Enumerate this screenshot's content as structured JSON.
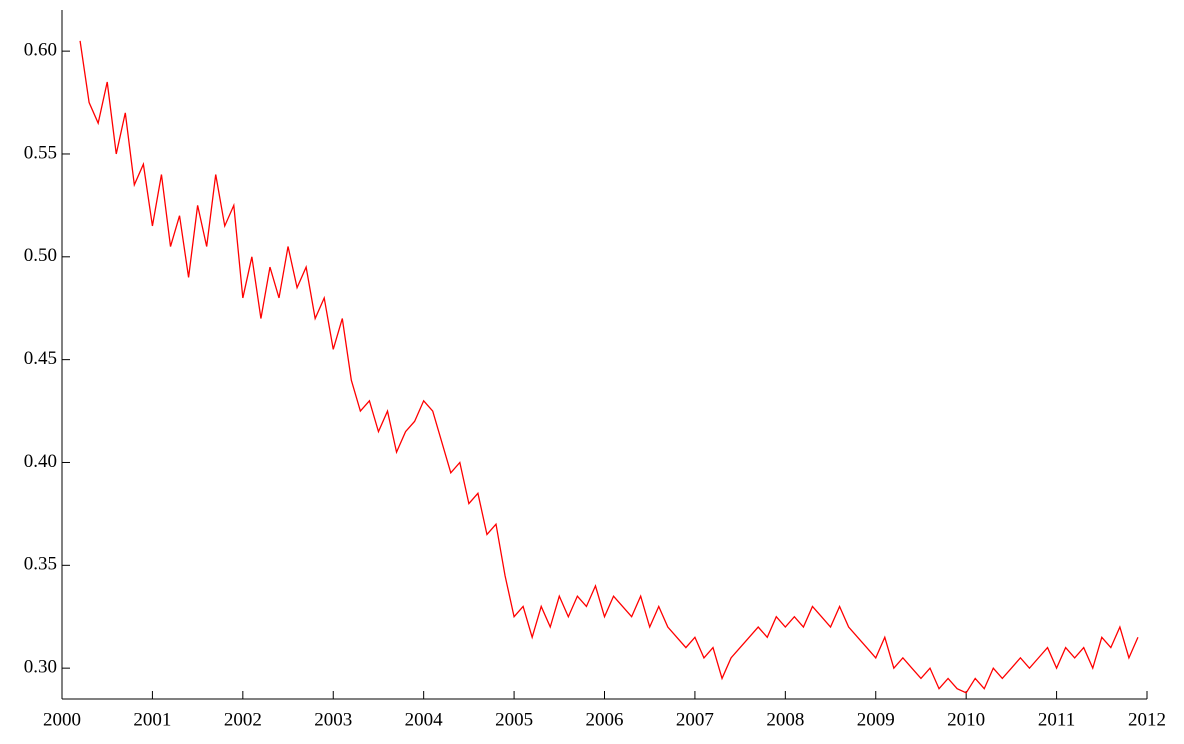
{
  "chart_data": {
    "type": "line",
    "x": [
      2000.2,
      2000.3,
      2000.4,
      2000.5,
      2000.6,
      2000.7,
      2000.8,
      2000.9,
      2001.0,
      2001.1,
      2001.2,
      2001.3,
      2001.4,
      2001.5,
      2001.6,
      2001.7,
      2001.8,
      2001.9,
      2002.0,
      2002.1,
      2002.2,
      2002.3,
      2002.4,
      2002.5,
      2002.6,
      2002.7,
      2002.8,
      2002.9,
      2003.0,
      2003.1,
      2003.2,
      2003.3,
      2003.4,
      2003.5,
      2003.6,
      2003.7,
      2003.8,
      2003.9,
      2004.0,
      2004.1,
      2004.2,
      2004.3,
      2004.4,
      2004.5,
      2004.6,
      2004.7,
      2004.8,
      2004.9,
      2005.0,
      2005.1,
      2005.2,
      2005.3,
      2005.4,
      2005.5,
      2005.6,
      2005.7,
      2005.8,
      2005.9,
      2006.0,
      2006.1,
      2006.2,
      2006.3,
      2006.4,
      2006.5,
      2006.6,
      2006.7,
      2006.8,
      2006.9,
      2007.0,
      2007.1,
      2007.2,
      2007.3,
      2007.4,
      2007.5,
      2007.6,
      2007.7,
      2007.8,
      2007.9,
      2008.0,
      2008.1,
      2008.2,
      2008.3,
      2008.4,
      2008.5,
      2008.6,
      2008.7,
      2008.8,
      2008.9,
      2009.0,
      2009.1,
      2009.2,
      2009.3,
      2009.4,
      2009.5,
      2009.6,
      2009.7,
      2009.8,
      2009.9,
      2010.0,
      2010.1,
      2010.2,
      2010.3,
      2010.4,
      2010.5,
      2010.6,
      2010.7,
      2010.8,
      2010.9,
      2011.0,
      2011.1,
      2011.2,
      2011.3,
      2011.4,
      2011.5,
      2011.6,
      2011.7,
      2011.8,
      2011.9
    ],
    "series": [
      {
        "color": "#ff0000",
        "values": [
          0.605,
          0.575,
          0.565,
          0.585,
          0.55,
          0.57,
          0.535,
          0.545,
          0.515,
          0.54,
          0.505,
          0.52,
          0.49,
          0.525,
          0.505,
          0.54,
          0.515,
          0.525,
          0.48,
          0.5,
          0.47,
          0.495,
          0.48,
          0.505,
          0.485,
          0.495,
          0.47,
          0.48,
          0.455,
          0.47,
          0.44,
          0.425,
          0.43,
          0.415,
          0.425,
          0.405,
          0.415,
          0.42,
          0.43,
          0.425,
          0.41,
          0.395,
          0.4,
          0.38,
          0.385,
          0.365,
          0.37,
          0.345,
          0.325,
          0.33,
          0.315,
          0.33,
          0.32,
          0.335,
          0.325,
          0.335,
          0.33,
          0.34,
          0.325,
          0.335,
          0.33,
          0.325,
          0.335,
          0.32,
          0.33,
          0.32,
          0.315,
          0.31,
          0.315,
          0.305,
          0.31,
          0.295,
          0.305,
          0.31,
          0.315,
          0.32,
          0.315,
          0.325,
          0.32,
          0.325,
          0.32,
          0.33,
          0.325,
          0.32,
          0.33,
          0.32,
          0.315,
          0.31,
          0.305,
          0.315,
          0.3,
          0.305,
          0.3,
          0.295,
          0.3,
          0.29,
          0.295,
          0.29,
          0.288,
          0.295,
          0.29,
          0.3,
          0.295,
          0.3,
          0.305,
          0.3,
          0.305,
          0.31,
          0.3,
          0.31,
          0.305,
          0.31,
          0.3,
          0.315,
          0.31,
          0.32,
          0.305,
          0.315
        ]
      }
    ],
    "xlim": [
      2000,
      2012
    ],
    "xticks": [
      2000,
      2001,
      2002,
      2003,
      2004,
      2005,
      2006,
      2007,
      2008,
      2009,
      2010,
      2011,
      2012
    ],
    "ylim": [
      0.285,
      0.62
    ],
    "yticks": [
      {
        "value": 0.3,
        "label": "0.30"
      },
      0.35,
      {
        "value": 0.4,
        "label": "0.40"
      },
      0.45,
      {
        "value": 0.5,
        "label": "0.50"
      },
      0.55,
      {
        "value": 0.6,
        "label": "0.60"
      }
    ]
  }
}
